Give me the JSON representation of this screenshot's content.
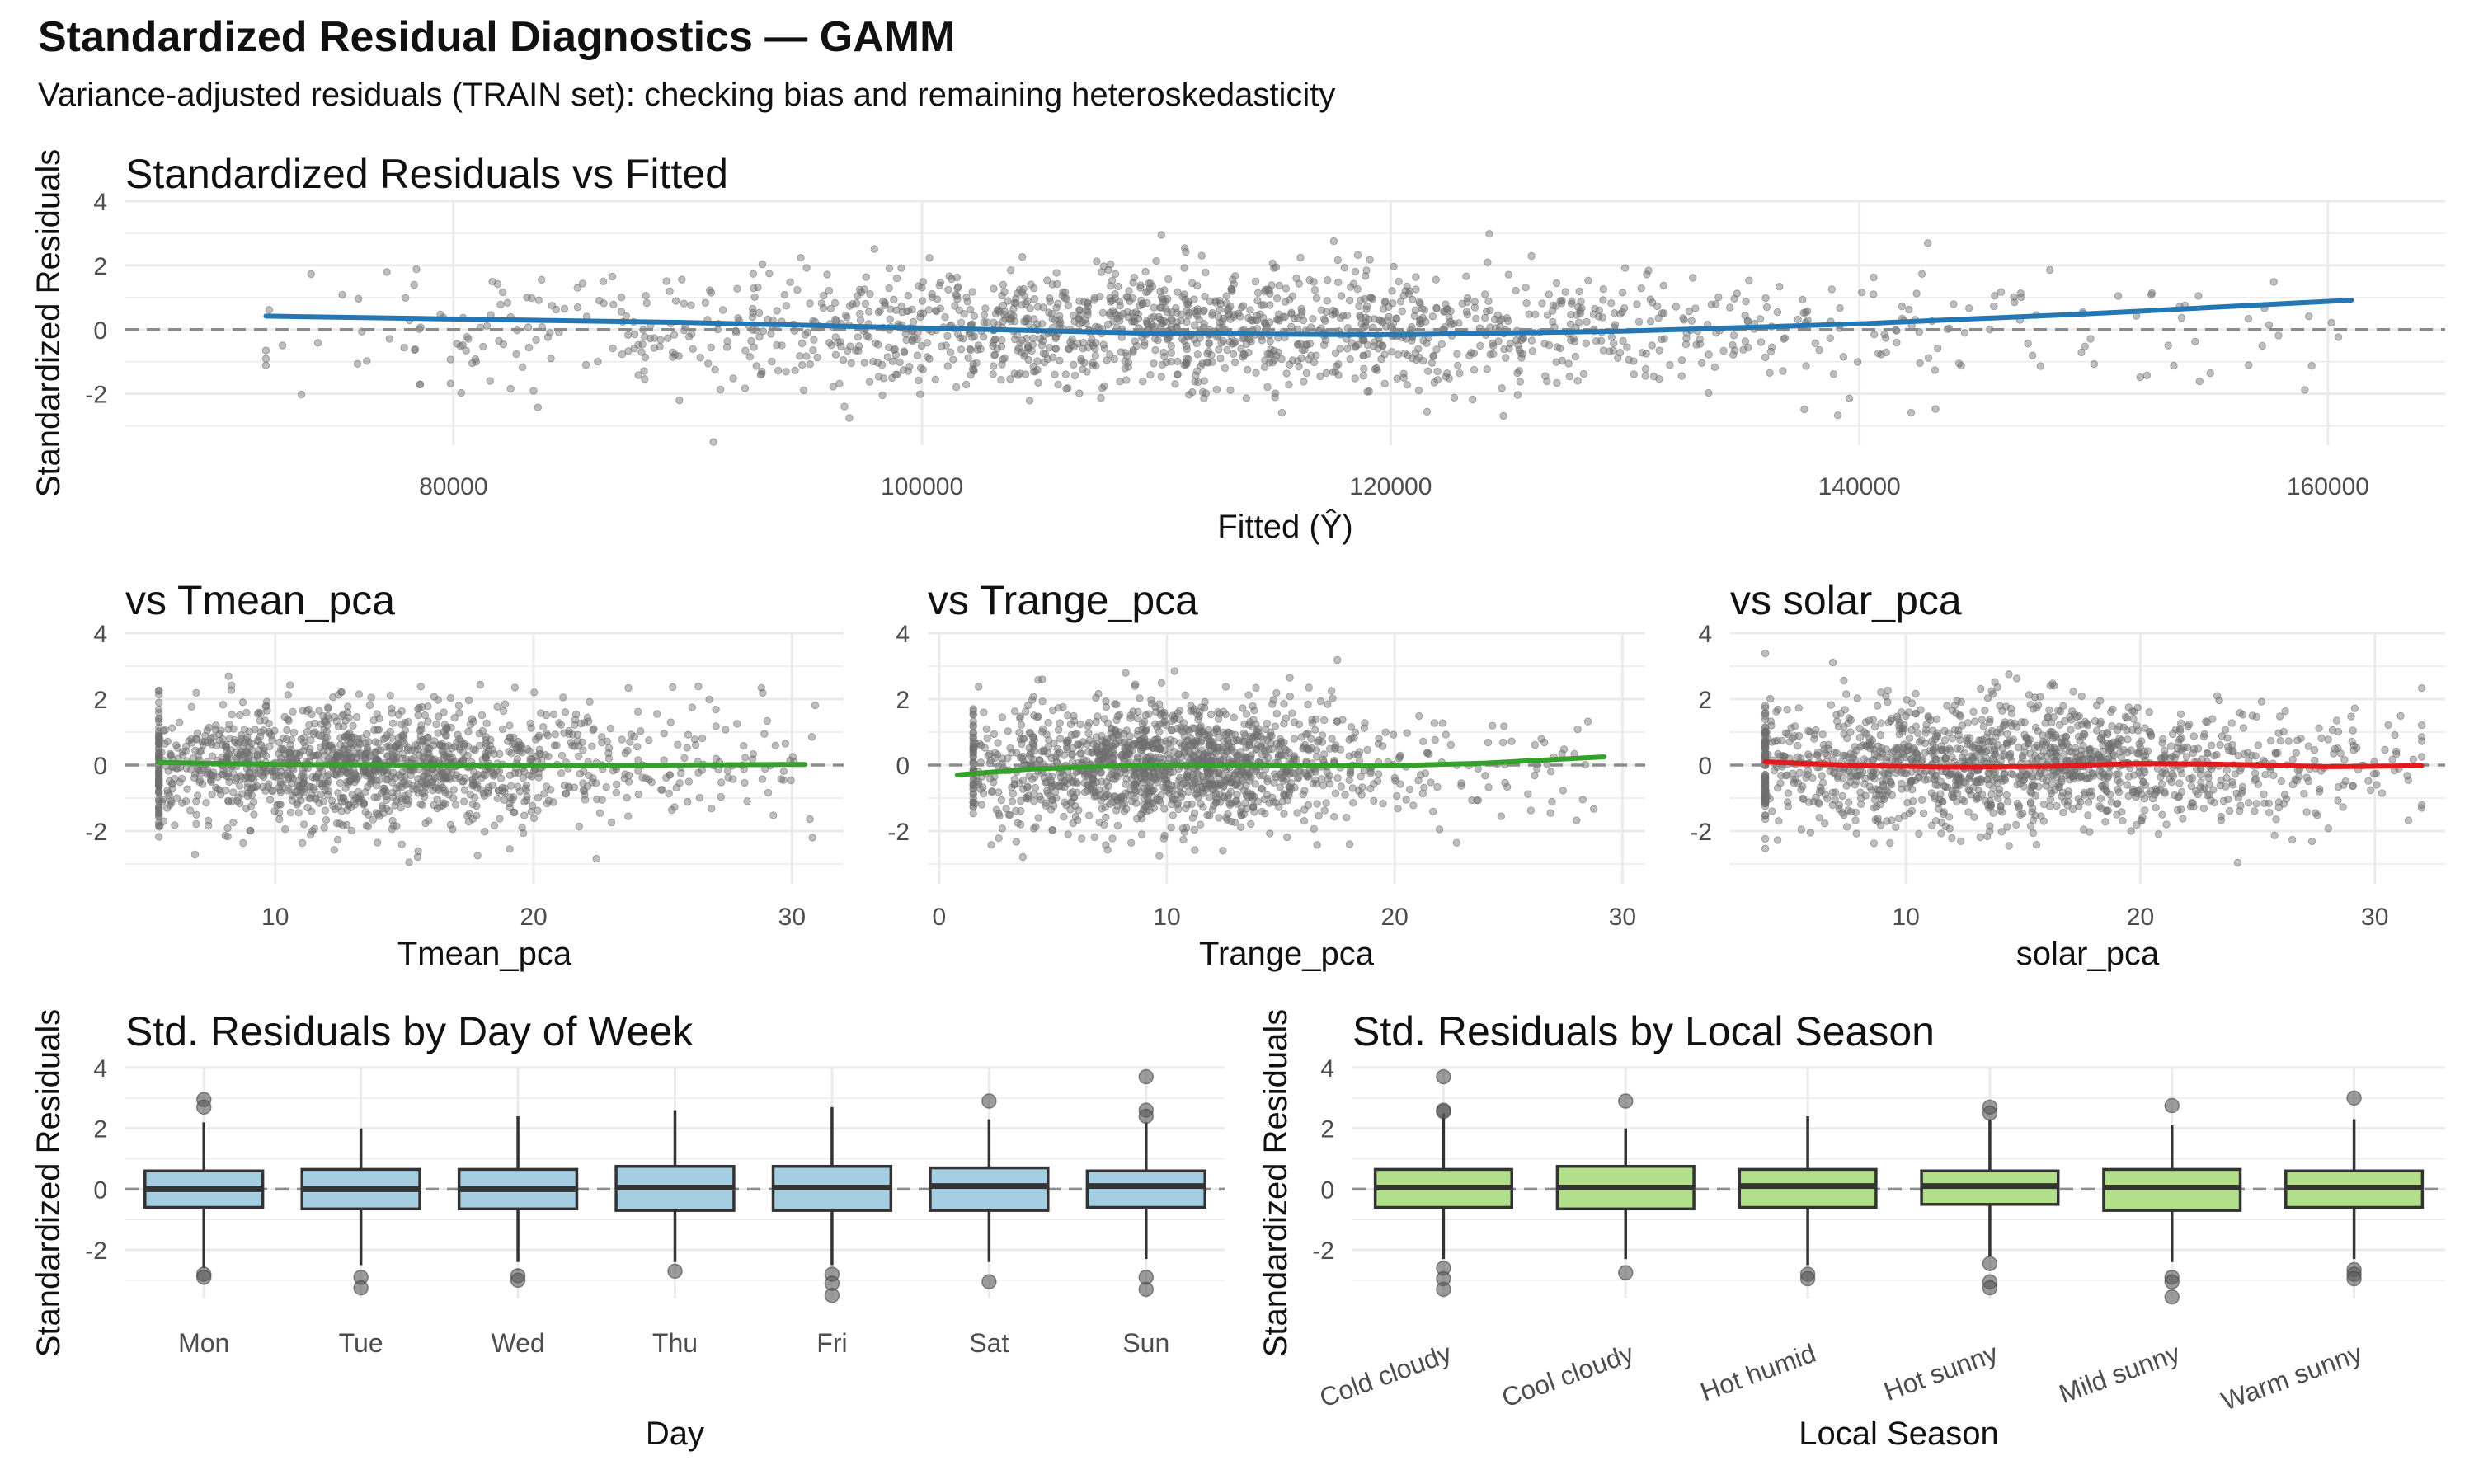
{
  "title": "Standardized Residual Diagnostics — GAMM",
  "subtitle": "Variance-adjusted residuals (TRAIN set): checking bias and remaining heteroskedasticity",
  "colors": {
    "points": "#6e6e6e",
    "fitted_smooth": "#2477b3",
    "covariate_smooth": "#36a02c",
    "solar_smooth": "#e31a1c",
    "day_box_fill": "#a6cee3",
    "season_box_fill": "#b2df8a",
    "zero_line": "#8c8c8c",
    "grid": "#ebebeb"
  },
  "chart_data": [
    {
      "id": "fitted",
      "type": "scatter",
      "title": "Standardized Residuals vs Fitted",
      "xlabel": "Fitted (Ŷ)",
      "ylabel": "Standardized Residuals",
      "xlim": [
        66000,
        165000
      ],
      "ylim": [
        -3.6,
        4.0
      ],
      "x_ticks": [
        80000,
        100000,
        120000,
        140000,
        160000
      ],
      "x_tick_labels": [
        "80000",
        "100000",
        "120000",
        "140000",
        "160000"
      ],
      "y_ticks": [
        -2,
        0,
        2,
        4
      ],
      "y_tick_labels": [
        "-2",
        "0",
        "2",
        "4"
      ],
      "point_cloud": {
        "n": 1600,
        "x_center": 112000,
        "x_sd": 14000,
        "x_min": 72000,
        "x_max": 161000,
        "y_sd": 0.95
      },
      "smooth": {
        "x": [
          72000,
          80000,
          90000,
          100000,
          110000,
          120000,
          130000,
          140000,
          150000,
          161000
        ],
        "y": [
          0.42,
          0.33,
          0.22,
          0.05,
          -0.12,
          -0.16,
          -0.05,
          0.18,
          0.5,
          0.92
        ]
      },
      "grid": true,
      "zero_line": true
    },
    {
      "id": "tmean",
      "type": "scatter",
      "title": "vs Tmean_pca",
      "xlabel": "Tmean_pca",
      "ylabel": "",
      "xlim": [
        4.2,
        32.0
      ],
      "ylim": [
        -3.6,
        4.0
      ],
      "x_ticks": [
        10,
        20,
        30
      ],
      "x_tick_labels": [
        "10",
        "20",
        "30"
      ],
      "y_ticks": [
        -2,
        0,
        2,
        4
      ],
      "y_tick_labels": [
        "-2",
        "0",
        "2",
        "4"
      ],
      "point_cloud": {
        "n": 1500,
        "x_center": 13,
        "x_sd": 5,
        "x_min": 5.5,
        "x_max": 31,
        "y_sd": 0.95
      },
      "smooth": {
        "x": [
          5.5,
          10,
          15,
          20,
          25,
          30.5
        ],
        "y": [
          0.08,
          0.02,
          0.0,
          0.0,
          0.0,
          0.02
        ]
      },
      "grid": true,
      "zero_line": true
    },
    {
      "id": "trange",
      "type": "scatter",
      "title": "vs Trange_pca",
      "xlabel": "Trange_pca",
      "ylabel": "",
      "xlim": [
        -0.5,
        31.0
      ],
      "ylim": [
        -3.6,
        4.0
      ],
      "x_ticks": [
        0,
        10,
        20,
        30
      ],
      "x_tick_labels": [
        "0",
        "10",
        "20",
        "30"
      ],
      "y_ticks": [
        -2,
        0,
        2,
        4
      ],
      "y_tick_labels": [
        "-2",
        "0",
        "2",
        "4"
      ],
      "point_cloud": {
        "n": 1500,
        "x_center": 10,
        "x_sd": 4.5,
        "x_min": 1.5,
        "x_max": 29,
        "y_sd": 0.95
      },
      "smooth": {
        "x": [
          0.8,
          4,
          8,
          12,
          16,
          20,
          24,
          29.2
        ],
        "y": [
          -0.3,
          -0.12,
          -0.02,
          0.0,
          -0.02,
          -0.02,
          0.06,
          0.25
        ]
      },
      "grid": true,
      "zero_line": true
    },
    {
      "id": "solar",
      "type": "scatter",
      "title": "vs solar_pca",
      "xlabel": "solar_pca",
      "ylabel": "",
      "xlim": [
        2.5,
        33.0
      ],
      "ylim": [
        -3.6,
        4.0
      ],
      "x_ticks": [
        10,
        20,
        30
      ],
      "x_tick_labels": [
        "10",
        "20",
        "30"
      ],
      "y_ticks": [
        -2,
        0,
        2,
        4
      ],
      "y_tick_labels": [
        "-2",
        "0",
        "2",
        "4"
      ],
      "point_cloud": {
        "n": 1500,
        "x_center": 14,
        "x_sd": 7,
        "x_min": 4,
        "x_max": 32,
        "y_sd": 0.95
      },
      "smooth": {
        "x": [
          4,
          8,
          12,
          16,
          20,
          24,
          28,
          32
        ],
        "y": [
          0.1,
          -0.02,
          -0.06,
          -0.04,
          0.05,
          0.02,
          -0.05,
          -0.02
        ]
      },
      "grid": true,
      "zero_line": true
    },
    {
      "id": "day",
      "type": "box",
      "title": "Std. Residuals by Day of Week",
      "xlabel": "Day",
      "ylabel": "Standardized Residuals",
      "ylim": [
        -3.6,
        4.0
      ],
      "y_ticks": [
        -2,
        0,
        2,
        4
      ],
      "y_tick_labels": [
        "-2",
        "0",
        "2",
        "4"
      ],
      "categories": [
        "Mon",
        "Tue",
        "Wed",
        "Thu",
        "Fri",
        "Sat",
        "Sun"
      ],
      "boxes": [
        {
          "q1": -0.6,
          "median": 0.0,
          "q3": 0.6,
          "lower": -2.6,
          "upper": 2.2,
          "outliers": [
            2.95,
            2.7,
            -2.8,
            -2.9
          ]
        },
        {
          "q1": -0.65,
          "median": 0.0,
          "q3": 0.65,
          "lower": -2.5,
          "upper": 2.0,
          "outliers": [
            -2.9,
            -3.25
          ]
        },
        {
          "q1": -0.65,
          "median": 0.0,
          "q3": 0.65,
          "lower": -2.4,
          "upper": 2.4,
          "outliers": [
            -2.85,
            -3.0
          ]
        },
        {
          "q1": -0.7,
          "median": 0.05,
          "q3": 0.75,
          "lower": -2.4,
          "upper": 2.6,
          "outliers": [
            -2.7
          ]
        },
        {
          "q1": -0.7,
          "median": 0.05,
          "q3": 0.75,
          "lower": -2.5,
          "upper": 2.7,
          "outliers": [
            -2.8,
            -3.1,
            -3.5
          ]
        },
        {
          "q1": -0.7,
          "median": 0.1,
          "q3": 0.7,
          "lower": -2.4,
          "upper": 2.3,
          "outliers": [
            2.9,
            -3.05
          ]
        },
        {
          "q1": -0.6,
          "median": 0.1,
          "q3": 0.6,
          "lower": -2.3,
          "upper": 2.2,
          "outliers": [
            3.7,
            2.6,
            2.4,
            -2.9,
            -3.3
          ]
        }
      ],
      "grid": true,
      "zero_line": true
    },
    {
      "id": "season",
      "type": "box",
      "title": "Std. Residuals by Local Season",
      "xlabel": "Local Season",
      "ylabel": "Standardized Residuals",
      "ylim": [
        -3.6,
        4.0
      ],
      "y_ticks": [
        -2,
        0,
        2,
        4
      ],
      "y_tick_labels": [
        "-2",
        "0",
        "2",
        "4"
      ],
      "categories": [
        "Cold cloudy",
        "Cool cloudy",
        "Hot humid",
        "Hot sunny",
        "Mild sunny",
        "Warm sunny"
      ],
      "boxes": [
        {
          "q1": -0.6,
          "median": 0.05,
          "q3": 0.65,
          "lower": -2.3,
          "upper": 2.5,
          "outliers": [
            3.7,
            2.6,
            2.55,
            -2.6,
            -2.95,
            -3.3
          ]
        },
        {
          "q1": -0.65,
          "median": 0.05,
          "q3": 0.75,
          "lower": -2.3,
          "upper": 2.0,
          "outliers": [
            2.9,
            -2.75
          ]
        },
        {
          "q1": -0.6,
          "median": 0.1,
          "q3": 0.65,
          "lower": -2.5,
          "upper": 2.4,
          "outliers": [
            -2.8,
            -2.95
          ]
        },
        {
          "q1": -0.5,
          "median": 0.1,
          "q3": 0.6,
          "lower": -2.2,
          "upper": 2.3,
          "outliers": [
            2.7,
            2.5,
            -2.45,
            -3.05,
            -3.25
          ]
        },
        {
          "q1": -0.7,
          "median": 0.05,
          "q3": 0.65,
          "lower": -2.4,
          "upper": 2.1,
          "outliers": [
            2.75,
            -2.9,
            -3.05,
            -3.55
          ]
        },
        {
          "q1": -0.6,
          "median": 0.05,
          "q3": 0.6,
          "lower": -2.3,
          "upper": 2.3,
          "outliers": [
            3.0,
            -2.65,
            -2.8,
            -2.95
          ]
        }
      ],
      "grid": true,
      "zero_line": true
    }
  ]
}
